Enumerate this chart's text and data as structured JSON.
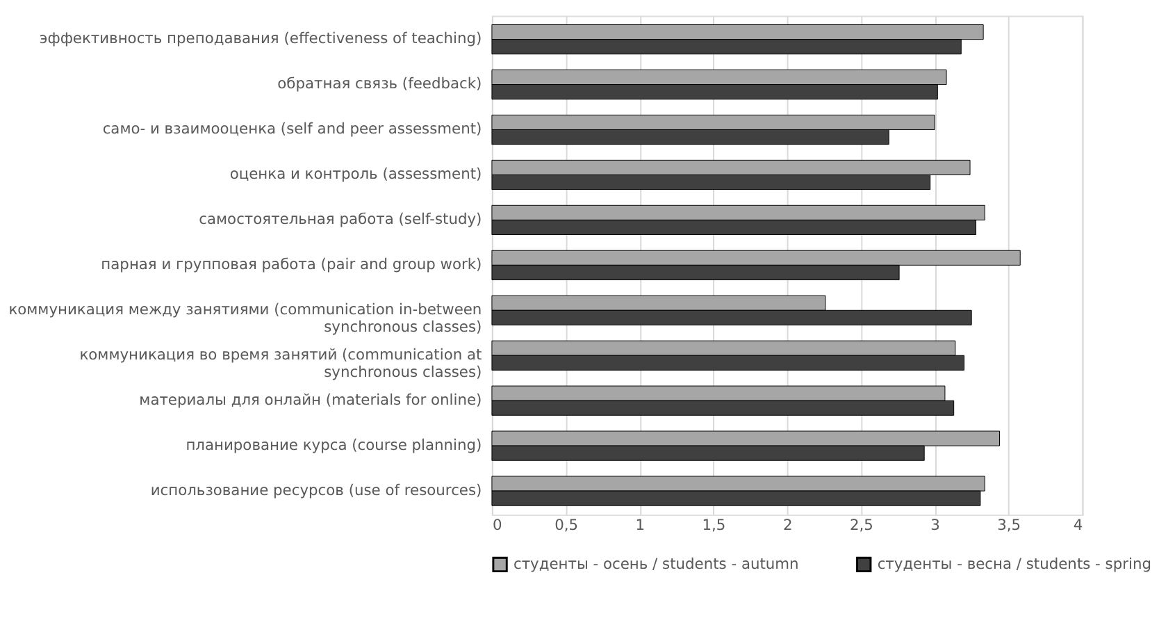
{
  "chart_data": {
    "type": "bar",
    "orientation": "horizontal",
    "categories": [
      "эффективность преподавания (effectiveness of teaching)",
      "обратная связь (feedback)",
      "само- и взаимооценка (self and peer assessment)",
      "оценка и контроль (assessment)",
      "самостоятельная работа (self-study)",
      "парная и групповая работа (pair and group work)",
      "коммуникация между занятиями (communication in-between synchronous classes)",
      "коммуникация во время занятий (communication at synchronous classes)",
      "материалы для онлайн (materials for online)",
      "планирование курса (course planning)",
      "использование ресурсов (use of resources)"
    ],
    "series": [
      {
        "name": "студенты - осень / students - autumn",
        "color": "#a6a6a6",
        "values": [
          3.33,
          3.08,
          3.0,
          3.24,
          3.34,
          3.58,
          2.26,
          3.14,
          3.07,
          3.44,
          3.34
        ]
      },
      {
        "name": "студенты - весна / students - spring",
        "color": "#404040",
        "values": [
          3.18,
          3.02,
          2.69,
          2.97,
          3.28,
          2.76,
          3.25,
          3.2,
          3.13,
          2.93,
          3.31
        ]
      }
    ],
    "xlim": [
      0,
      4
    ],
    "xticks": [
      {
        "value": 0,
        "label": "0"
      },
      {
        "value": 0.5,
        "label": "0,5"
      },
      {
        "value": 1,
        "label": "1"
      },
      {
        "value": 1.5,
        "label": "1,5"
      },
      {
        "value": 2,
        "label": "2"
      },
      {
        "value": 2.5,
        "label": "2,5"
      },
      {
        "value": 3,
        "label": "3"
      },
      {
        "value": 3.5,
        "label": "3,5"
      },
      {
        "value": 4,
        "label": "4"
      }
    ],
    "grid": "x",
    "legend": "bottom"
  }
}
